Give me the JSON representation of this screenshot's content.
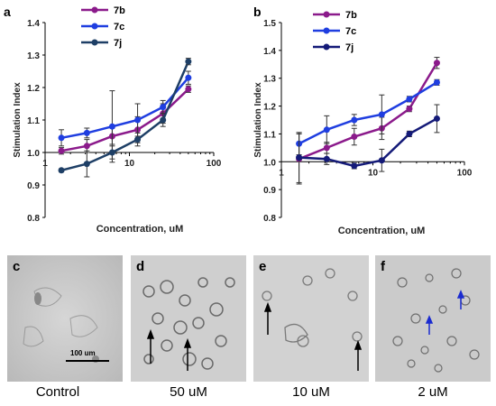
{
  "chart_data": [
    {
      "panel": "a",
      "type": "line",
      "xscale": "log",
      "xlim": [
        1,
        100
      ],
      "ylim": [
        0.8,
        1.4
      ],
      "xticks": [
        1,
        10,
        100
      ],
      "yticks": [
        0.8,
        0.9,
        1.0,
        1.1,
        1.2,
        1.3,
        1.4
      ],
      "ytick_labels": [
        "0.8",
        "0.9",
        "1.0",
        "1.1",
        "1.2",
        "1.3",
        "1.4"
      ],
      "xlabel": "Concentration, uM",
      "ylabel": "Stimulation Index",
      "legend_position": "top-left",
      "x": [
        1.56,
        3.13,
        6.25,
        12.5,
        25,
        50
      ],
      "series": [
        {
          "name": "7b",
          "color": "#8b1a8b",
          "values": [
            1.005,
            1.02,
            1.05,
            1.07,
            1.12,
            1.195
          ],
          "err": [
            0.01,
            0.02,
            0.025,
            0.04,
            0.03,
            0.01
          ]
        },
        {
          "name": "7c",
          "color": "#1f3ee0",
          "values": [
            1.045,
            1.06,
            1.08,
            1.1,
            1.14,
            1.23
          ],
          "err": [
            0.025,
            0.015,
            0.11,
            0.05,
            0.02,
            0.02
          ]
        },
        {
          "name": "7j",
          "color": "#1e3f66",
          "values": [
            0.945,
            0.965,
            1.0,
            1.04,
            1.1,
            1.28
          ],
          "err": [
            0.005,
            0.04,
            0.02,
            0.02,
            0.02,
            0.01
          ]
        }
      ]
    },
    {
      "panel": "b",
      "type": "line",
      "xscale": "log",
      "xlim": [
        1,
        100
      ],
      "ylim": [
        0.8,
        1.5
      ],
      "xticks": [
        1,
        10,
        100
      ],
      "yticks": [
        0.8,
        0.9,
        1.0,
        1.1,
        1.2,
        1.3,
        1.4,
        1.5
      ],
      "ytick_labels": [
        "0.8",
        "0.9",
        "1.0",
        "1.1",
        "1.2",
        "1.3",
        "1.4",
        "1.5"
      ],
      "xlabel": "Concentration, uM",
      "ylabel": "Stimulation Index",
      "legend_position": "top-left",
      "x": [
        1.56,
        3.13,
        6.25,
        12.5,
        25,
        50
      ],
      "series": [
        {
          "name": "7b",
          "color": "#8b1a8b",
          "values": [
            1.01,
            1.05,
            1.09,
            1.12,
            1.19,
            1.355
          ],
          "err": [
            0.09,
            0.02,
            0.03,
            0.04,
            0.01,
            0.02
          ]
        },
        {
          "name": "7c",
          "color": "#1f3ee0",
          "values": [
            1.065,
            1.115,
            1.15,
            1.17,
            1.225,
            1.285
          ],
          "err": [
            0.04,
            0.05,
            0.02,
            0.07,
            0.01,
            0.01
          ]
        },
        {
          "name": "7j",
          "color": "#141a78",
          "values": [
            1.015,
            1.01,
            0.985,
            1.005,
            1.1,
            1.155
          ],
          "err": [
            0.09,
            0.02,
            0.01,
            0.04,
            0.01,
            0.05
          ]
        }
      ]
    }
  ],
  "panels": {
    "a_letter": "a",
    "b_letter": "b",
    "images": [
      {
        "letter": "c",
        "caption": "Control"
      },
      {
        "letter": "d",
        "caption": "50 uM"
      },
      {
        "letter": "e",
        "caption": "10 uM"
      },
      {
        "letter": "f",
        "caption": "2 uM"
      }
    ],
    "scale_bar_label": "100 um",
    "black_arrow_color": "#000000",
    "blue_arrow_color": "#1a2bd0"
  }
}
